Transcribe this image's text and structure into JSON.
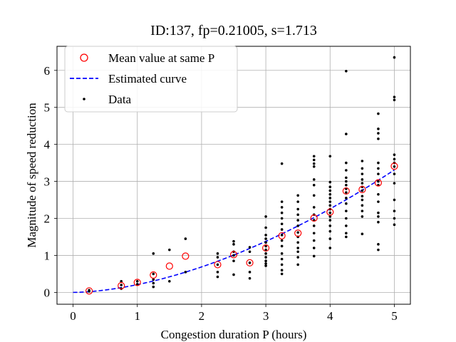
{
  "chart_data": {
    "type": "scatter",
    "title": "ID:137, fp=0.21005, s=1.713",
    "xlabel": "Congestion duration P (hours)",
    "ylabel": "Magnitude of speed reduction",
    "xlim": [
      -0.25,
      5.25
    ],
    "ylim": [
      -0.32,
      6.65
    ],
    "xticks": [
      0,
      1,
      2,
      3,
      4,
      5
    ],
    "yticks": [
      0,
      1,
      2,
      3,
      4,
      5,
      6
    ],
    "grid": true,
    "legend_position": "top-left",
    "series": [
      {
        "name": "Mean value at same P",
        "marker": "open-circle",
        "color": "#ff0000",
        "points": [
          [
            0.25,
            0.04
          ],
          [
            0.75,
            0.18
          ],
          [
            1.0,
            0.27
          ],
          [
            1.25,
            0.47
          ],
          [
            1.5,
            0.71
          ],
          [
            1.75,
            0.98
          ],
          [
            2.25,
            0.75
          ],
          [
            2.5,
            1.02
          ],
          [
            2.75,
            0.8
          ],
          [
            3.0,
            1.2
          ],
          [
            3.25,
            1.53
          ],
          [
            3.5,
            1.6
          ],
          [
            3.75,
            2.01
          ],
          [
            4.0,
            2.17
          ],
          [
            4.25,
            2.74
          ],
          [
            4.5,
            2.78
          ],
          [
            4.75,
            2.96
          ],
          [
            5.0,
            3.41
          ]
        ]
      },
      {
        "name": "Estimated curve",
        "style": "dashed-line",
        "color": "#0000ff",
        "fp": 0.21005,
        "s": 1.713,
        "x_range": [
          0,
          5
        ]
      },
      {
        "name": "Data",
        "marker": "dot",
        "color": "#000000",
        "points": [
          [
            0.25,
            0.03
          ],
          [
            0.25,
            0.06
          ],
          [
            0.75,
            0.1
          ],
          [
            0.75,
            0.2
          ],
          [
            0.75,
            0.3
          ],
          [
            1.0,
            0.22
          ],
          [
            1.0,
            0.3
          ],
          [
            1.25,
            0.15
          ],
          [
            1.25,
            0.25
          ],
          [
            1.25,
            0.35
          ],
          [
            1.25,
            0.5
          ],
          [
            1.25,
            1.05
          ],
          [
            1.5,
            0.3
          ],
          [
            1.5,
            1.15
          ],
          [
            1.75,
            0.55
          ],
          [
            1.75,
            1.45
          ],
          [
            2.25,
            0.42
          ],
          [
            2.25,
            0.55
          ],
          [
            2.25,
            0.75
          ],
          [
            2.25,
            0.95
          ],
          [
            2.25,
            1.05
          ],
          [
            2.5,
            0.48
          ],
          [
            2.5,
            0.85
          ],
          [
            2.5,
            1.0
          ],
          [
            2.5,
            1.1
          ],
          [
            2.5,
            1.3
          ],
          [
            2.5,
            1.38
          ],
          [
            2.75,
            0.38
          ],
          [
            2.75,
            0.55
          ],
          [
            2.75,
            0.8
          ],
          [
            2.75,
            1.1
          ],
          [
            2.75,
            1.22
          ],
          [
            3.0,
            0.72
          ],
          [
            3.0,
            0.78
          ],
          [
            3.0,
            0.85
          ],
          [
            3.0,
            0.95
          ],
          [
            3.0,
            1.05
          ],
          [
            3.0,
            1.15
          ],
          [
            3.0,
            1.25
          ],
          [
            3.0,
            1.35
          ],
          [
            3.0,
            1.45
          ],
          [
            3.0,
            1.55
          ],
          [
            3.0,
            1.75
          ],
          [
            3.0,
            2.05
          ],
          [
            3.25,
            0.5
          ],
          [
            3.25,
            0.6
          ],
          [
            3.25,
            0.75
          ],
          [
            3.25,
            0.9
          ],
          [
            3.25,
            1.05
          ],
          [
            3.25,
            1.25
          ],
          [
            3.25,
            1.4
          ],
          [
            3.25,
            1.55
          ],
          [
            3.25,
            1.7
          ],
          [
            3.25,
            1.85
          ],
          [
            3.25,
            2.0
          ],
          [
            3.25,
            2.15
          ],
          [
            3.25,
            2.3
          ],
          [
            3.25,
            2.45
          ],
          [
            3.25,
            3.48
          ],
          [
            3.5,
            0.75
          ],
          [
            3.5,
            0.95
          ],
          [
            3.5,
            1.1
          ],
          [
            3.5,
            1.2
          ],
          [
            3.5,
            1.35
          ],
          [
            3.5,
            1.5
          ],
          [
            3.5,
            1.62
          ],
          [
            3.5,
            1.8
          ],
          [
            3.5,
            1.95
          ],
          [
            3.5,
            2.1
          ],
          [
            3.5,
            2.25
          ],
          [
            3.5,
            2.45
          ],
          [
            3.5,
            2.62
          ],
          [
            3.75,
            0.98
          ],
          [
            3.75,
            1.2
          ],
          [
            3.75,
            1.4
          ],
          [
            3.75,
            1.6
          ],
          [
            3.75,
            1.8
          ],
          [
            3.75,
            1.95
          ],
          [
            3.75,
            2.1
          ],
          [
            3.75,
            2.3
          ],
          [
            3.75,
            2.62
          ],
          [
            3.75,
            2.9
          ],
          [
            3.75,
            3.05
          ],
          [
            3.75,
            3.4
          ],
          [
            3.75,
            3.48
          ],
          [
            3.75,
            3.58
          ],
          [
            3.75,
            3.68
          ],
          [
            4.0,
            1.2
          ],
          [
            4.0,
            1.45
          ],
          [
            4.0,
            1.65
          ],
          [
            4.0,
            1.8
          ],
          [
            4.0,
            1.95
          ],
          [
            4.0,
            2.05
          ],
          [
            4.0,
            2.15
          ],
          [
            4.0,
            2.25
          ],
          [
            4.0,
            2.35
          ],
          [
            4.0,
            2.45
          ],
          [
            4.0,
            2.55
          ],
          [
            4.0,
            2.65
          ],
          [
            4.0,
            2.75
          ],
          [
            4.0,
            2.85
          ],
          [
            4.0,
            2.98
          ],
          [
            4.0,
            3.68
          ],
          [
            4.25,
            1.5
          ],
          [
            4.25,
            1.6
          ],
          [
            4.25,
            1.8
          ],
          [
            4.25,
            2.0
          ],
          [
            4.25,
            2.2
          ],
          [
            4.25,
            2.4
          ],
          [
            4.25,
            2.55
          ],
          [
            4.25,
            2.7
          ],
          [
            4.25,
            2.8
          ],
          [
            4.25,
            2.9
          ],
          [
            4.25,
            3.0
          ],
          [
            4.25,
            3.1
          ],
          [
            4.25,
            3.3
          ],
          [
            4.25,
            3.5
          ],
          [
            4.25,
            4.28
          ],
          [
            4.25,
            5.98
          ],
          [
            4.5,
            1.58
          ],
          [
            4.5,
            2.05
          ],
          [
            4.5,
            2.2
          ],
          [
            4.5,
            2.35
          ],
          [
            4.5,
            2.5
          ],
          [
            4.5,
            2.6
          ],
          [
            4.5,
            2.75
          ],
          [
            4.5,
            2.85
          ],
          [
            4.5,
            2.95
          ],
          [
            4.5,
            3.05
          ],
          [
            4.5,
            3.2
          ],
          [
            4.5,
            3.35
          ],
          [
            4.5,
            3.55
          ],
          [
            4.75,
            1.15
          ],
          [
            4.75,
            1.3
          ],
          [
            4.75,
            1.9
          ],
          [
            4.75,
            2.05
          ],
          [
            4.75,
            2.15
          ],
          [
            4.75,
            2.45
          ],
          [
            4.75,
            2.65
          ],
          [
            4.75,
            2.9
          ],
          [
            4.75,
            3.0
          ],
          [
            4.75,
            3.2
          ],
          [
            4.75,
            3.35
          ],
          [
            4.75,
            3.5
          ],
          [
            4.75,
            4.15
          ],
          [
            4.75,
            4.3
          ],
          [
            4.75,
            4.42
          ],
          [
            4.75,
            4.83
          ],
          [
            5.0,
            1.83
          ],
          [
            5.0,
            2.0
          ],
          [
            5.0,
            2.2
          ],
          [
            5.0,
            2.5
          ],
          [
            5.0,
            2.95
          ],
          [
            5.0,
            3.2
          ],
          [
            5.0,
            3.4
          ],
          [
            5.0,
            3.5
          ],
          [
            5.0,
            3.6
          ],
          [
            5.0,
            3.72
          ],
          [
            5.0,
            5.2
          ],
          [
            5.0,
            5.28
          ],
          [
            5.0,
            6.35
          ]
        ]
      }
    ]
  }
}
